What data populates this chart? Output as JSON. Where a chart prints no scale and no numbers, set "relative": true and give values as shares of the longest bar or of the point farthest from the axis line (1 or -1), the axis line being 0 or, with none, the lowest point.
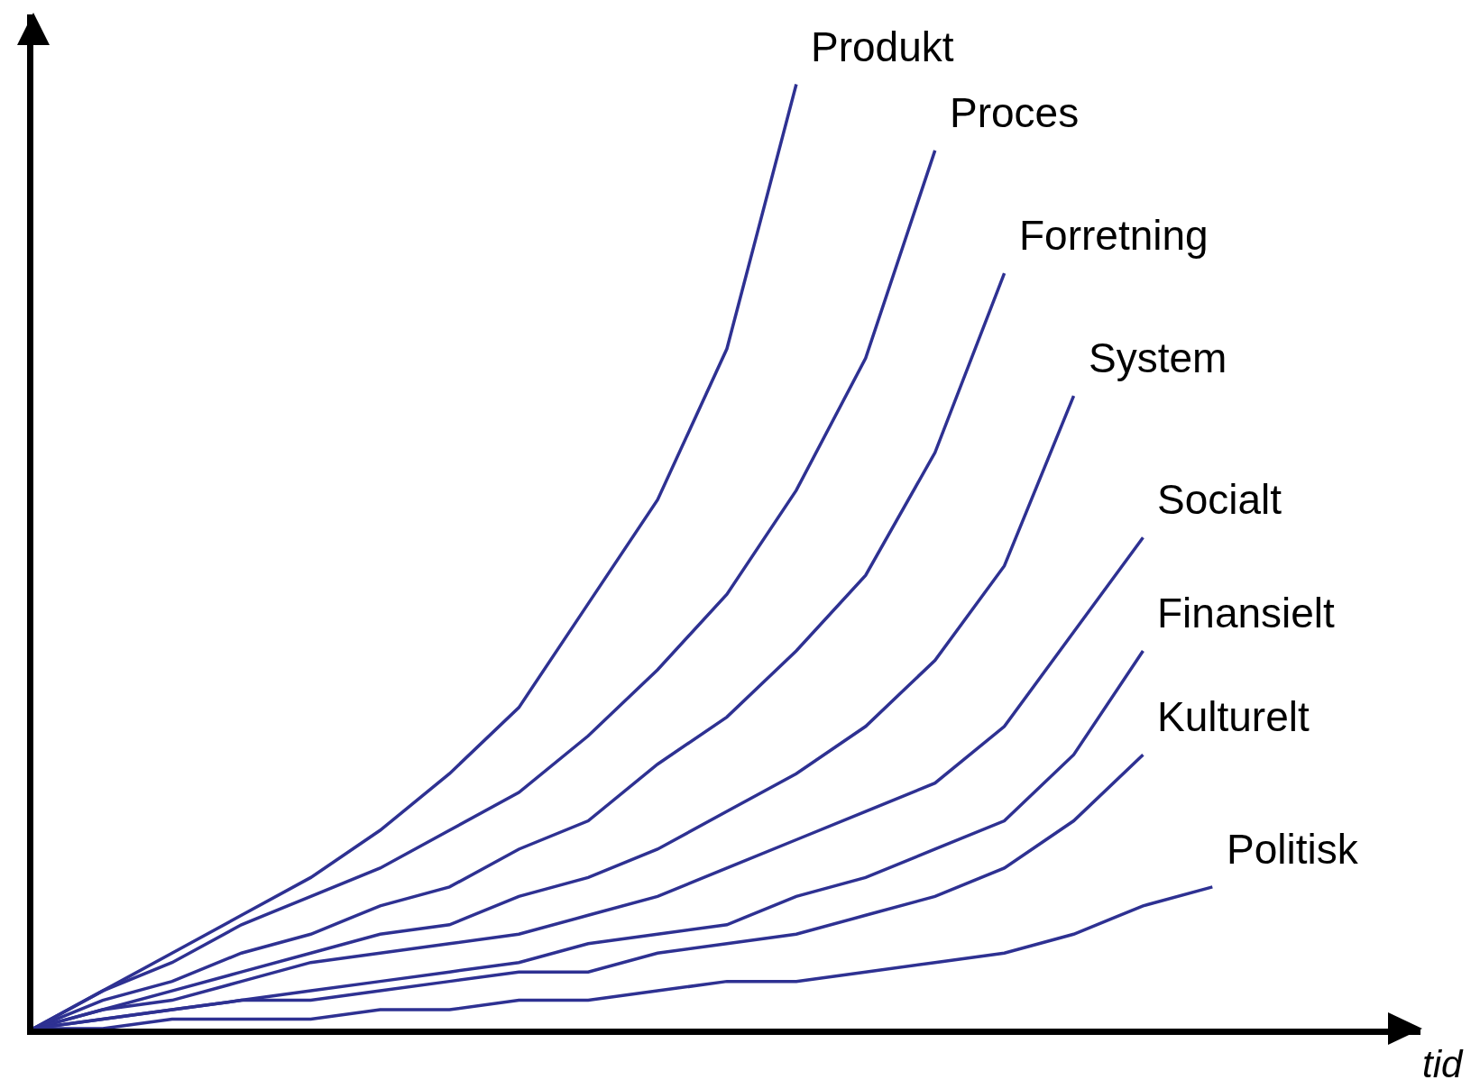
{
  "chart_data": {
    "type": "line",
    "relative": true,
    "xlabel": "tid",
    "tick_labels": false,
    "categories": [
      null,
      null,
      null,
      null,
      null,
      null,
      null,
      null,
      null,
      null,
      null,
      null,
      null,
      null,
      null,
      null,
      null,
      null
    ],
    "series": [
      {
        "name": "Produkt",
        "color": "#2e3192",
        "values": [
          0,
          0.04,
          0.08,
          0.12,
          0.16,
          0.21,
          0.27,
          0.34,
          0.45,
          0.56,
          0.72,
          1,
          null,
          null,
          null,
          null,
          null,
          null
        ]
      },
      {
        "name": "Proces",
        "color": "#2e3192",
        "values": [
          0,
          0.04,
          0.07,
          0.11,
          0.14,
          0.17,
          0.21,
          0.25,
          0.31,
          0.38,
          0.46,
          0.57,
          0.71,
          0.93,
          null,
          null,
          null,
          null
        ]
      },
      {
        "name": "Forretning",
        "color": "#2e3192",
        "values": [
          0,
          0.03,
          0.05,
          0.08,
          0.1,
          0.13,
          0.15,
          0.19,
          0.22,
          0.28,
          0.33,
          0.4,
          0.48,
          0.61,
          0.8,
          null,
          null,
          null
        ]
      },
      {
        "name": "System",
        "color": "#2e3192",
        "values": [
          0,
          0.02,
          0.04,
          0.06,
          0.08,
          0.1,
          0.11,
          0.14,
          0.16,
          0.19,
          0.23,
          0.27,
          0.32,
          0.39,
          0.49,
          0.67,
          null,
          null
        ]
      },
      {
        "name": "Socialt",
        "color": "#2e3192",
        "values": [
          0,
          0.02,
          0.03,
          0.05,
          0.07,
          0.08,
          0.09,
          0.1,
          0.12,
          0.14,
          0.17,
          0.2,
          0.23,
          0.26,
          0.32,
          0.42,
          0.52,
          null
        ]
      },
      {
        "name": "Finansielt",
        "color": "#2e3192",
        "values": [
          0,
          0.01,
          0.02,
          0.03,
          0.04,
          0.05,
          0.06,
          0.07,
          0.09,
          0.1,
          0.11,
          0.14,
          0.16,
          0.19,
          0.22,
          0.29,
          0.4,
          null
        ]
      },
      {
        "name": "Kulturelt",
        "color": "#2e3192",
        "values": [
          0,
          0.01,
          0.02,
          0.03,
          0.03,
          0.04,
          0.05,
          0.06,
          0.06,
          0.08,
          0.09,
          0.1,
          0.12,
          0.14,
          0.17,
          0.22,
          0.29,
          null
        ]
      },
      {
        "name": "Politisk",
        "color": "#2e3192",
        "values": [
          0,
          0,
          0.01,
          0.01,
          0.01,
          0.02,
          0.02,
          0.03,
          0.03,
          0.04,
          0.05,
          0.05,
          0.06,
          0.07,
          0.08,
          0.1,
          0.13,
          0.15
        ]
      }
    ]
  }
}
